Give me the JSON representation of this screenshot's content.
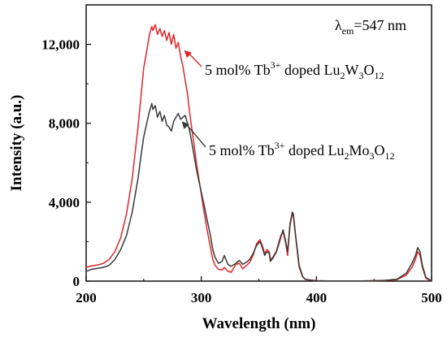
{
  "chart_data": {
    "type": "line",
    "xlabel": "Wavelength (nm)",
    "ylabel": "Intensity (a.u.)",
    "xlim": [
      200,
      500
    ],
    "ylim": [
      0,
      14000
    ],
    "xticks": [
      200,
      300,
      400,
      500
    ],
    "yticks": [
      0,
      4000,
      8000,
      12000
    ],
    "xtick_labels": [
      "200",
      "300",
      "400",
      "500"
    ],
    "ytick_labels": [
      "0",
      "4,000",
      "8,000",
      "12,000"
    ],
    "grid": false,
    "legend": "none",
    "annotation": {
      "lambda": "λ",
      "sub": "em",
      "value": "=547 nm"
    },
    "series": [
      {
        "label_parts": {
          "pre": "5 mol% Tb",
          "sup": "3+",
          "mid": " doped Lu",
          "s1": "2",
          "m2": "W",
          "s2": "3",
          "m3": "O",
          "s3": "12"
        },
        "color": "#e0262b",
        "x": [
          200,
          205,
          210,
          215,
          220,
          225,
          230,
          235,
          240,
          245,
          248,
          250,
          253,
          255,
          257,
          258,
          260,
          262,
          264,
          266,
          268,
          270,
          272,
          274,
          276,
          278,
          280,
          282,
          284,
          286,
          288,
          290,
          293,
          296,
          300,
          303,
          305,
          308,
          310,
          312,
          315,
          318,
          320,
          323,
          326,
          330,
          333,
          336,
          339,
          342,
          345,
          348,
          351,
          353,
          355,
          357,
          359,
          360,
          362,
          365,
          367,
          369,
          371,
          373,
          375,
          377,
          379,
          380,
          382,
          385,
          388,
          390,
          395,
          400,
          410,
          420,
          430,
          440,
          450,
          460,
          470,
          478,
          483,
          486,
          488,
          490,
          492,
          495,
          500
        ],
        "y": [
          700,
          780,
          820,
          900,
          1100,
          1500,
          2200,
          3400,
          5200,
          7800,
          9600,
          10800,
          11800,
          12500,
          12900,
          12700,
          13000,
          12500,
          12800,
          12400,
          12700,
          12200,
          12600,
          12000,
          12500,
          11800,
          12100,
          11400,
          10900,
          10200,
          9500,
          8500,
          7200,
          5900,
          4400,
          3300,
          2600,
          1700,
          1100,
          800,
          600,
          560,
          700,
          500,
          450,
          850,
          900,
          620,
          780,
          950,
          1300,
          1900,
          2100,
          1800,
          1400,
          1600,
          1500,
          1100,
          1200,
          1500,
          1900,
          2300,
          2500,
          2000,
          1300,
          2800,
          3400,
          3300,
          2200,
          700,
          220,
          100,
          50,
          20,
          10,
          10,
          10,
          10,
          20,
          30,
          80,
          300,
          700,
          1100,
          1500,
          1300,
          700,
          150,
          0
        ]
      },
      {
        "label_parts": {
          "pre": "5 mol% Tb",
          "sup": "3+",
          "mid": " doped Lu",
          "s1": "2",
          "m2": "Mo",
          "s2": "3",
          "m3": "O",
          "s3": "12"
        },
        "color": "#3a3a3a",
        "x": [
          200,
          205,
          210,
          215,
          220,
          225,
          230,
          235,
          240,
          245,
          248,
          250,
          253,
          255,
          257,
          258,
          260,
          262,
          264,
          266,
          268,
          270,
          272,
          274,
          276,
          278,
          280,
          282,
          284,
          286,
          288,
          290,
          293,
          296,
          300,
          303,
          305,
          308,
          310,
          312,
          315,
          318,
          320,
          323,
          326,
          330,
          333,
          336,
          339,
          342,
          345,
          348,
          351,
          353,
          355,
          357,
          359,
          360,
          362,
          365,
          367,
          369,
          371,
          373,
          375,
          377,
          379,
          380,
          382,
          385,
          388,
          390,
          395,
          400,
          410,
          420,
          430,
          440,
          450,
          460,
          470,
          478,
          483,
          486,
          488,
          490,
          492,
          495,
          500
        ],
        "y": [
          500,
          600,
          650,
          700,
          800,
          1100,
          1600,
          2300,
          3500,
          5200,
          6500,
          7300,
          8100,
          8600,
          9000,
          8700,
          8900,
          8300,
          8600,
          8100,
          8400,
          7900,
          7800,
          7600,
          8100,
          8300,
          8500,
          8200,
          8300,
          8400,
          8000,
          7600,
          6600,
          5600,
          4500,
          3700,
          3100,
          2300,
          1600,
          1200,
          900,
          1000,
          1300,
          850,
          750,
          900,
          1050,
          850,
          950,
          1100,
          1400,
          1800,
          2000,
          1700,
          1300,
          1500,
          1400,
          1000,
          1150,
          1450,
          1800,
          2200,
          2600,
          2100,
          1500,
          2900,
          3500,
          3400,
          2300,
          800,
          250,
          100,
          50,
          20,
          10,
          10,
          10,
          10,
          20,
          40,
          100,
          400,
          900,
          1300,
          1700,
          1500,
          800,
          200,
          0
        ]
      }
    ],
    "labels": [
      {
        "series": 0,
        "at": [
          285,
          11700
        ]
      },
      {
        "series": 1,
        "at": [
          283,
          8100
        ]
      }
    ]
  }
}
